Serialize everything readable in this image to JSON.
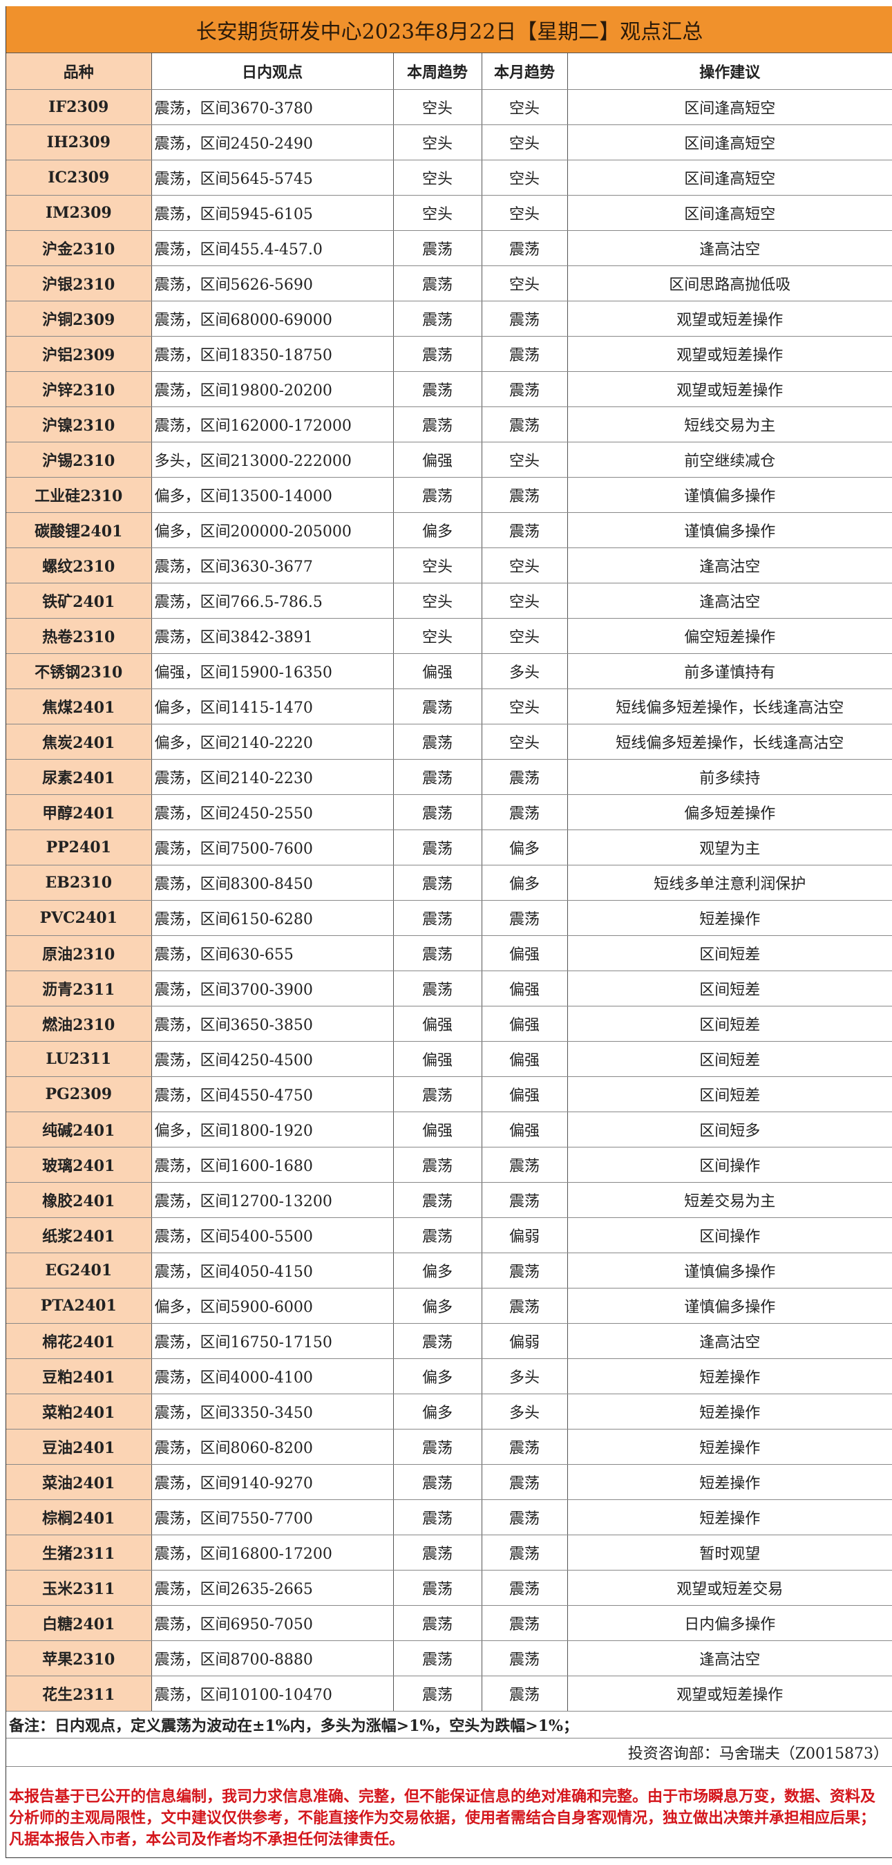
{
  "title": "长安期货研发中心2023年8月22日【星期二】观点汇总",
  "colors": {
    "title_bg": "#f0912c",
    "variety_bg": "#fbd4b4",
    "disclaimer_text": "#d4161c"
  },
  "headers": [
    "品种",
    "日内观点",
    "本周趋势",
    "本月趋势",
    "操作建议"
  ],
  "rows": [
    [
      "IF2309",
      "震荡，区间3670-3780",
      "空头",
      "空头",
      "区间逢高短空"
    ],
    [
      "IH2309",
      "震荡，区间2450-2490",
      "空头",
      "空头",
      "区间逢高短空"
    ],
    [
      "IC2309",
      "震荡，区间5645-5745",
      "空头",
      "空头",
      "区间逢高短空"
    ],
    [
      "IM2309",
      "震荡，区间5945-6105",
      "空头",
      "空头",
      "区间逢高短空"
    ],
    [
      "沪金2310",
      "震荡，区间455.4-457.0",
      "震荡",
      "震荡",
      "逢高沽空"
    ],
    [
      "沪银2310",
      "震荡，区间5626-5690",
      "震荡",
      "空头",
      "区间思路高抛低吸"
    ],
    [
      "沪铜2309",
      "震荡，区间68000-69000",
      "震荡",
      "震荡",
      "观望或短差操作"
    ],
    [
      "沪铝2309",
      "震荡，区间18350-18750",
      "震荡",
      "震荡",
      "观望或短差操作"
    ],
    [
      "沪锌2310",
      "震荡，区间19800-20200",
      "震荡",
      "震荡",
      "观望或短差操作"
    ],
    [
      "沪镍2310",
      "震荡，区间162000-172000",
      "震荡",
      "震荡",
      "短线交易为主"
    ],
    [
      "沪锡2310",
      "多头，区间213000-222000",
      "偏强",
      "空头",
      "前空继续减仓"
    ],
    [
      "工业硅2310",
      "偏多，区间13500-14000",
      "震荡",
      "震荡",
      "谨慎偏多操作"
    ],
    [
      "碳酸锂2401",
      "偏多，区间200000-205000",
      "偏多",
      "震荡",
      "谨慎偏多操作"
    ],
    [
      "螺纹2310",
      "震荡，区间3630-3677",
      "空头",
      "空头",
      "逢高沽空"
    ],
    [
      "铁矿2401",
      "震荡，区间766.5-786.5",
      "空头",
      "空头",
      "逢高沽空"
    ],
    [
      "热卷2310",
      "震荡，区间3842-3891",
      "空头",
      "空头",
      "偏空短差操作"
    ],
    [
      "不锈钢2310",
      "偏强，区间15900-16350",
      "偏强",
      "多头",
      "前多谨慎持有"
    ],
    [
      "焦煤2401",
      "偏多，区间1415-1470",
      "震荡",
      "空头",
      "短线偏多短差操作，长线逢高沽空"
    ],
    [
      "焦炭2401",
      "偏多，区间2140-2220",
      "震荡",
      "空头",
      "短线偏多短差操作，长线逢高沽空"
    ],
    [
      "尿素2401",
      "震荡，区间2140-2230",
      "震荡",
      "震荡",
      "前多续持"
    ],
    [
      "甲醇2401",
      "震荡，区间2450-2550",
      "震荡",
      "震荡",
      "偏多短差操作"
    ],
    [
      "PP2401",
      "震荡，区间7500-7600",
      "震荡",
      "偏多",
      "观望为主"
    ],
    [
      "EB2310",
      "震荡，区间8300-8450",
      "震荡",
      "偏多",
      "短线多单注意利润保护"
    ],
    [
      "PVC2401",
      "震荡，区间6150-6280",
      "震荡",
      "震荡",
      "短差操作"
    ],
    [
      "原油2310",
      "震荡，区间630-655",
      "震荡",
      "偏强",
      "区间短差"
    ],
    [
      "沥青2311",
      "震荡，区间3700-3900",
      "震荡",
      "偏强",
      "区间短差"
    ],
    [
      "燃油2310",
      "震荡，区间3650-3850",
      "偏强",
      "偏强",
      "区间短差"
    ],
    [
      "LU2311",
      "震荡，区间4250-4500",
      "偏强",
      "偏强",
      "区间短差"
    ],
    [
      "PG2309",
      "震荡，区间4550-4750",
      "震荡",
      "偏强",
      "区间短差"
    ],
    [
      "纯碱2401",
      "偏多，区间1800-1920",
      "偏强",
      "偏强",
      "区间短多"
    ],
    [
      "玻璃2401",
      "震荡，区间1600-1680",
      "震荡",
      "震荡",
      "区间操作"
    ],
    [
      "橡胶2401",
      "震荡，区间12700-13200",
      "震荡",
      "震荡",
      "短差交易为主"
    ],
    [
      "纸浆2401",
      "震荡，区间5400-5500",
      "震荡",
      "偏弱",
      "区间操作"
    ],
    [
      "EG2401",
      "震荡，区间4050-4150",
      "偏多",
      "震荡",
      "谨慎偏多操作"
    ],
    [
      "PTA2401",
      "偏多，区间5900-6000",
      "偏多",
      "震荡",
      "谨慎偏多操作"
    ],
    [
      "棉花2401",
      "震荡，区间16750-17150",
      "震荡",
      "偏弱",
      "逢高沽空"
    ],
    [
      "豆粕2401",
      "震荡，区间4000-4100",
      "偏多",
      "多头",
      "短差操作"
    ],
    [
      "菜粕2401",
      "震荡，区间3350-3450",
      "偏多",
      "多头",
      "短差操作"
    ],
    [
      "豆油2401",
      "震荡，区间8060-8200",
      "震荡",
      "震荡",
      "短差操作"
    ],
    [
      "菜油2401",
      "震荡，区间9140-9270",
      "震荡",
      "震荡",
      "短差操作"
    ],
    [
      "棕榈2401",
      "震荡，区间7550-7700",
      "震荡",
      "震荡",
      "短差操作"
    ],
    [
      "生猪2311",
      "震荡，区间16800-17200",
      "震荡",
      "震荡",
      "暂时观望"
    ],
    [
      "玉米2311",
      "震荡，区间2635-2665",
      "震荡",
      "震荡",
      "观望或短差交易"
    ],
    [
      "白糖2401",
      "震荡，区间6950-7050",
      "震荡",
      "震荡",
      "日内偏多操作"
    ],
    [
      "苹果2310",
      "震荡，区间8700-8880",
      "震荡",
      "震荡",
      "逢高沽空"
    ],
    [
      "花生2311",
      "震荡，区间10100-10470",
      "震荡",
      "震荡",
      "观望或短差操作"
    ]
  ],
  "note": "备注：日内观点，定义震荡为波动在±1%内，多头为涨幅>1%，空头为跌幅>1%；",
  "analyst": "投资咨询部：马舍瑞夫（Z0015873）",
  "disclaimer": "本报告基于已公开的信息编制，我司力求信息准确、完整，但不能保证信息的绝对准确和完整。由于市场瞬息万变，数据、资料及分析师的主观局限性，文中建议仅供参考，不能直接作为交易依据，使用者需结合自身客观情况，独立做出决策并承担相应后果；凡据本报告入市者，本公司及作者均不承担任何法律责任。"
}
